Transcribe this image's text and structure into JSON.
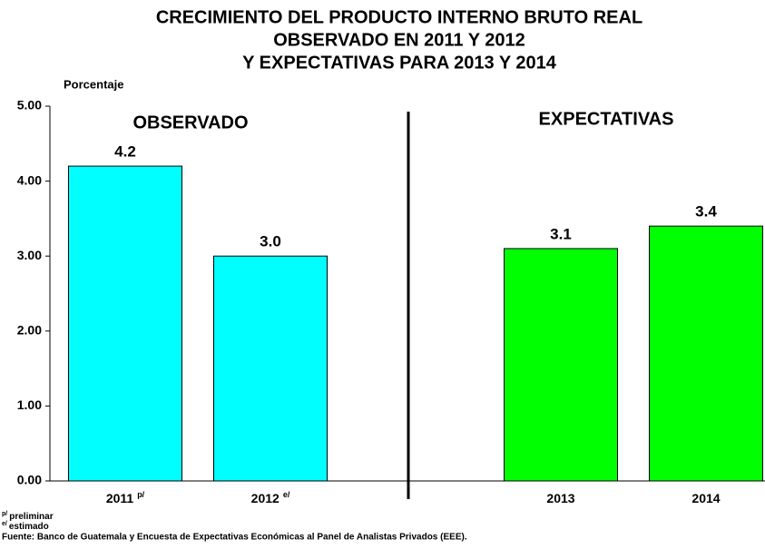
{
  "chart_data": {
    "type": "bar",
    "title": [
      "CRECIMIENTO DEL PRODUCTO INTERNO BRUTO REAL",
      "OBSERVADO EN 2011 Y 2012",
      "Y EXPECTATIVAS PARA 2013 Y 2014"
    ],
    "y_label": "Porcentaje",
    "categories": [
      "2011",
      "2012",
      null,
      "2013",
      "2014"
    ],
    "category_superscripts": [
      "p/",
      "e/",
      null,
      null,
      null
    ],
    "values": [
      4.2,
      3.0,
      null,
      3.1,
      3.4
    ],
    "value_labels": [
      "4.2",
      "3.0",
      null,
      "3.1",
      "3.4"
    ],
    "colors": [
      "#00ffff",
      "#00ffff",
      null,
      "#00ff00",
      "#00ff00"
    ],
    "group_labels": [
      "OBSERVADO",
      "EXPECTATIVAS"
    ],
    "ylim": [
      0,
      5
    ],
    "yticks": [
      {
        "value": 0,
        "label": "0.00"
      },
      {
        "value": 1,
        "label": "1.00"
      },
      {
        "value": 2,
        "label": "2.00"
      },
      {
        "value": 3,
        "label": "3.00"
      },
      {
        "value": 4,
        "label": "4.00"
      },
      {
        "value": 5,
        "label": "5.00"
      }
    ],
    "notes": [
      {
        "mark": "p/",
        "text": "preliminar"
      },
      {
        "mark": "e/",
        "text": "estimado"
      }
    ],
    "source": "Fuente:  Banco de Guatemala y Encuesta de Expectativas Económicas al Panel de Analistas Privados (EEE)."
  }
}
